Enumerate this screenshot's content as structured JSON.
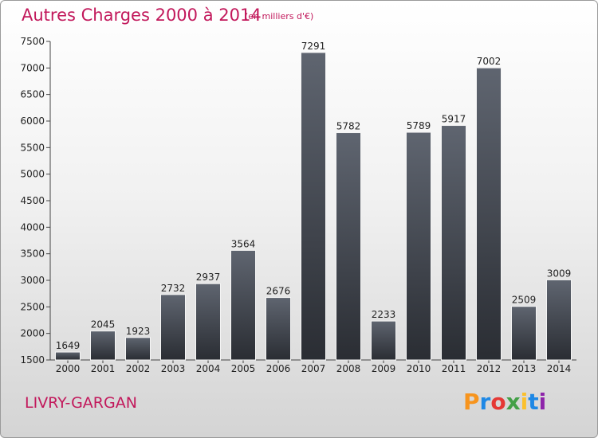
{
  "header": {
    "title": "Autres Charges 2000 à 2014",
    "subtitle": "(en milliers d'€)"
  },
  "footer": {
    "location": "LIVRY-GARGAN",
    "logo_text": "Proxiti",
    "logo_colors": [
      "#f7941d",
      "#1e88e5",
      "#e53935",
      "#43a047",
      "#fbc02d",
      "#1e88e5",
      "#8e24aa"
    ]
  },
  "colors": {
    "accent": "#c2185b",
    "bar_top": "#5f6570",
    "bar_bottom": "#2a2d33"
  },
  "chart_data": {
    "type": "bar",
    "title": "Autres Charges 2000 à 2014",
    "subtitle": "(en milliers d'€)",
    "xlabel": "",
    "ylabel": "",
    "categories": [
      "2000",
      "2001",
      "2002",
      "2003",
      "2004",
      "2005",
      "2006",
      "2007",
      "2008",
      "2009",
      "2010",
      "2011",
      "2012",
      "2013",
      "2014"
    ],
    "values": [
      1649,
      2045,
      1923,
      2732,
      2937,
      3564,
      2676,
      7291,
      5782,
      2233,
      5789,
      5917,
      7002,
      2509,
      3009
    ],
    "ylim": [
      1500,
      7500
    ],
    "yticks": [
      1500,
      2000,
      2500,
      3000,
      3500,
      4000,
      4500,
      5000,
      5500,
      6000,
      6500,
      7000,
      7500
    ],
    "grid": false,
    "data_labels": true
  }
}
